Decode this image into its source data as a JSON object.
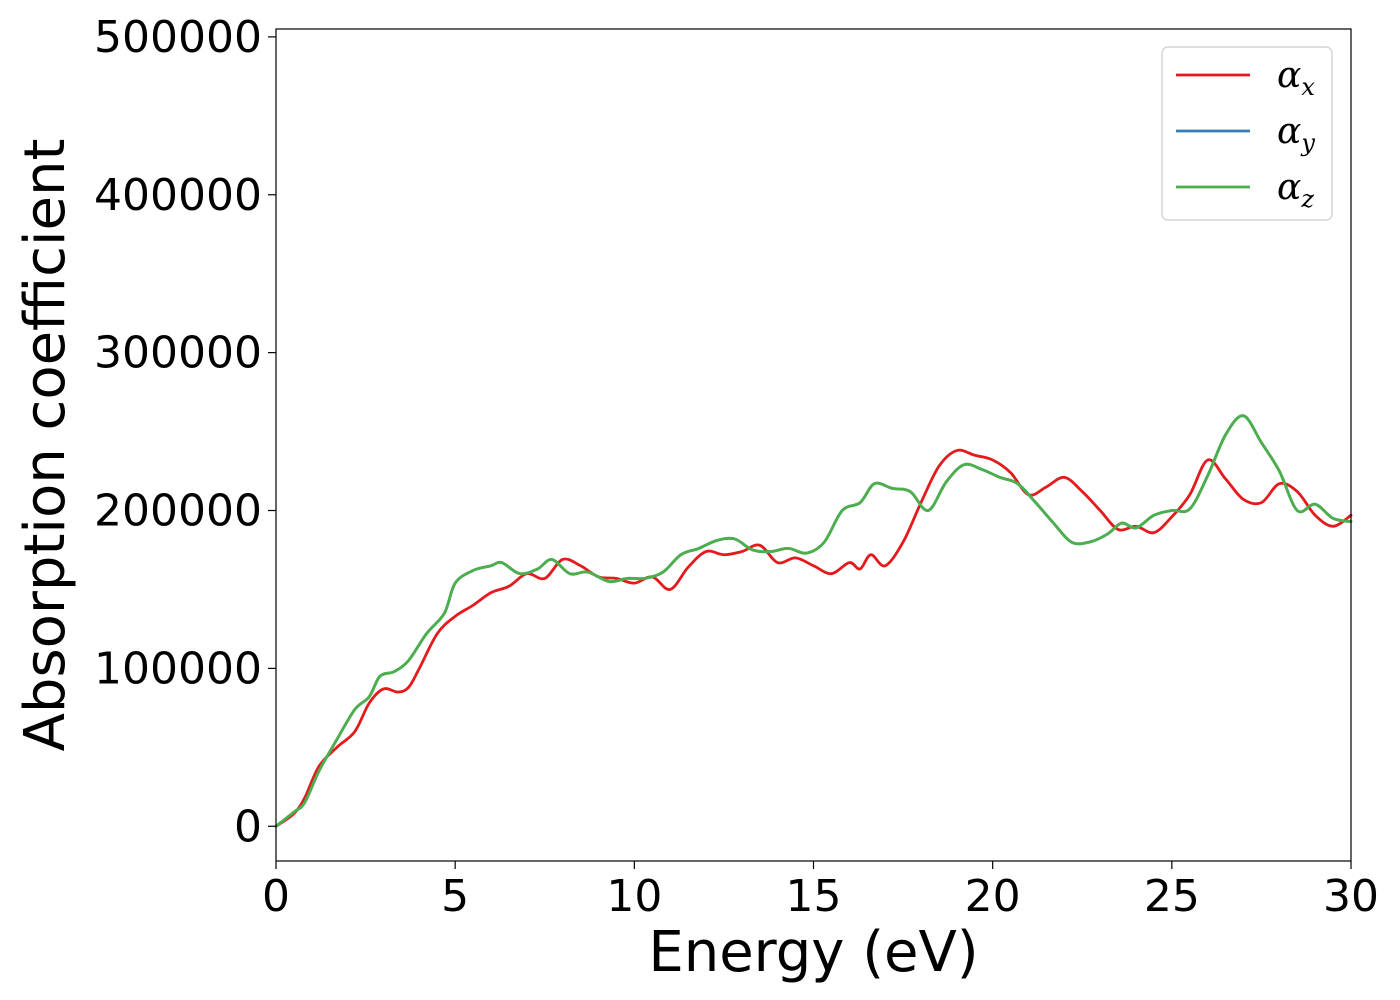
{
  "chart_data": {
    "type": "line",
    "xlabel": "Energy (eV)",
    "ylabel": "Absorption coefficient",
    "xlim": [
      0,
      30
    ],
    "ylim": [
      -22000,
      505000
    ],
    "x_ticks": [
      0,
      5,
      10,
      15,
      20,
      25,
      30
    ],
    "y_ticks": [
      0,
      100000,
      200000,
      300000,
      400000,
      500000
    ],
    "grid": false,
    "legend_position": "top-right",
    "series": [
      {
        "name": "α_x",
        "legend_symbol": "α",
        "legend_subscript": "x",
        "color": "#e41a1c",
        "x": [
          0,
          0.5,
          0.8,
          1.2,
          1.7,
          2.2,
          2.6,
          3.0,
          3.4,
          3.7,
          4.0,
          4.5,
          5.0,
          5.5,
          6.0,
          6.5,
          7.0,
          7.5,
          8.0,
          8.5,
          9.0,
          9.5,
          10.0,
          10.5,
          11.0,
          11.5,
          12.0,
          12.5,
          13.0,
          13.5,
          14.0,
          14.5,
          15.0,
          15.5,
          16.0,
          16.3,
          16.6,
          17.0,
          17.5,
          18.0,
          18.5,
          19.0,
          19.5,
          20.0,
          20.5,
          21.0,
          21.5,
          22.0,
          22.5,
          23.0,
          23.5,
          24.0,
          24.5,
          25.0,
          25.5,
          26.0,
          26.5,
          27.0,
          27.5,
          28.0,
          28.5,
          29.0,
          29.5,
          30.0
        ],
        "values": [
          0,
          8000,
          18000,
          38000,
          50000,
          60000,
          78000,
          87000,
          85000,
          88000,
          100000,
          122000,
          133000,
          140000,
          148000,
          152000,
          160000,
          157000,
          169000,
          165000,
          158000,
          157000,
          154000,
          158000,
          150000,
          164000,
          174000,
          172000,
          174000,
          178000,
          167000,
          170000,
          165000,
          160000,
          167000,
          163000,
          172000,
          165000,
          180000,
          205000,
          228000,
          238000,
          235000,
          232000,
          224000,
          210000,
          215000,
          221000,
          212000,
          200000,
          188000,
          190000,
          186000,
          196000,
          210000,
          232000,
          220000,
          207000,
          205000,
          217000,
          212000,
          197000,
          190000,
          197000
        ]
      },
      {
        "name": "α_y",
        "legend_symbol": "α",
        "legend_subscript": "y",
        "color": "#377eb8",
        "x": [
          0,
          0.5,
          0.8,
          1.2,
          1.7,
          2.2,
          2.6,
          2.9,
          3.3,
          3.7,
          4.2,
          4.7,
          5.0,
          5.5,
          6.0,
          6.3,
          6.8,
          7.3,
          7.7,
          8.2,
          8.7,
          9.3,
          9.8,
          10.3,
          10.8,
          11.3,
          11.8,
          12.3,
          12.8,
          13.3,
          13.8,
          14.3,
          14.8,
          15.3,
          15.8,
          16.3,
          16.7,
          17.2,
          17.7,
          18.2,
          18.7,
          19.2,
          19.7,
          20.2,
          20.7,
          21.2,
          21.7,
          22.2,
          22.7,
          23.2,
          23.6,
          24.0,
          24.5,
          25.0,
          25.5,
          26.0,
          26.5,
          27.0,
          27.5,
          28.0,
          28.5,
          29.0,
          29.5,
          30.0
        ],
        "values": [
          0,
          9000,
          15000,
          35000,
          55000,
          74000,
          82000,
          95000,
          98000,
          105000,
          122000,
          135000,
          154000,
          162000,
          165000,
          167000,
          160000,
          163000,
          169000,
          160000,
          161000,
          155000,
          157000,
          157000,
          161000,
          172000,
          176000,
          181000,
          182000,
          175000,
          174000,
          176000,
          173000,
          180000,
          200000,
          205000,
          217000,
          214000,
          212000,
          200000,
          218000,
          229000,
          226000,
          221000,
          217000,
          205000,
          192000,
          180000,
          180000,
          185000,
          192000,
          189000,
          197000,
          200000,
          201000,
          222000,
          248000,
          260000,
          243000,
          225000,
          200000,
          204000,
          195000,
          193000
        ]
      },
      {
        "name": "α_z",
        "legend_symbol": "α",
        "legend_subscript": "z",
        "color": "#4daf4a",
        "x": [
          0,
          0.5,
          0.8,
          1.2,
          1.7,
          2.2,
          2.6,
          2.9,
          3.3,
          3.7,
          4.2,
          4.7,
          5.0,
          5.5,
          6.0,
          6.3,
          6.8,
          7.3,
          7.7,
          8.2,
          8.7,
          9.3,
          9.8,
          10.3,
          10.8,
          11.3,
          11.8,
          12.3,
          12.8,
          13.3,
          13.8,
          14.3,
          14.8,
          15.3,
          15.8,
          16.3,
          16.7,
          17.2,
          17.7,
          18.2,
          18.7,
          19.2,
          19.7,
          20.2,
          20.7,
          21.2,
          21.7,
          22.2,
          22.7,
          23.2,
          23.6,
          24.0,
          24.5,
          25.0,
          25.5,
          26.0,
          26.5,
          27.0,
          27.5,
          28.0,
          28.5,
          29.0,
          29.5,
          30.0
        ],
        "values": [
          0,
          9000,
          15000,
          35000,
          55000,
          74000,
          82000,
          95000,
          98000,
          105000,
          122000,
          135000,
          154000,
          162000,
          165000,
          167000,
          160000,
          163000,
          169000,
          160000,
          161000,
          155000,
          157000,
          157000,
          161000,
          172000,
          176000,
          181000,
          182000,
          175000,
          174000,
          176000,
          173000,
          180000,
          200000,
          205000,
          217000,
          214000,
          212000,
          200000,
          218000,
          229000,
          226000,
          221000,
          217000,
          205000,
          192000,
          180000,
          180000,
          185000,
          192000,
          189000,
          197000,
          200000,
          201000,
          222000,
          248000,
          260000,
          243000,
          225000,
          200000,
          204000,
          195000,
          193000
        ]
      }
    ]
  }
}
